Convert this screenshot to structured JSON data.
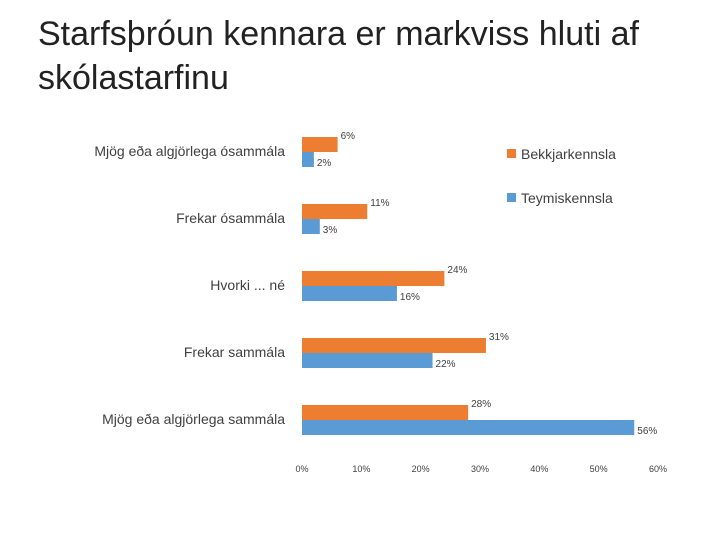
{
  "slide": {
    "title": "Starfsþróun kennara er markviss hluti af skólastarfinu"
  },
  "chart_data": {
    "type": "bar",
    "orientation": "horizontal",
    "categories": [
      "Mjög eða algjörlega ósammála",
      "Frekar ósammála",
      "Hvorki ... né",
      "Frekar sammála",
      "Mjög eða algjörlega sammála"
    ],
    "series": [
      {
        "name": "Bekkjarkennsla",
        "color": "#ED7D31",
        "values": [
          6,
          11,
          24,
          31,
          28
        ],
        "labels": [
          "6%",
          "11%",
          "24%",
          "31%",
          "28%"
        ]
      },
      {
        "name": "Teymiskennsla",
        "color": "#5B9BD5",
        "values": [
          2,
          3,
          16,
          22,
          56
        ],
        "labels": [
          "2%",
          "3%",
          "16%",
          "22%",
          "56%"
        ]
      }
    ],
    "xlim": [
      0,
      60
    ],
    "xticks": [
      0,
      10,
      20,
      30,
      40,
      50,
      60
    ],
    "xtick_labels": [
      "0%",
      "10%",
      "20%",
      "30%",
      "40%",
      "50%",
      "60%"
    ],
    "grid": false,
    "legend_position": "top-right"
  }
}
